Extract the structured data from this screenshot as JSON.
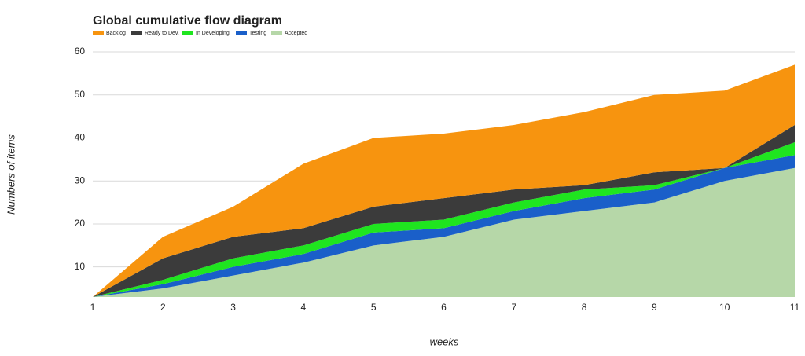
{
  "chart_data": {
    "type": "stacked_area",
    "title": "Global cumulative flow diagram",
    "x_label": "weeks",
    "y_label": "Numbers of items",
    "x": [
      1,
      2,
      3,
      4,
      5,
      6,
      7,
      8,
      9,
      10,
      11
    ],
    "series": [
      {
        "name": "Backlog",
        "color": "#f7940f",
        "values": [
          0,
          5,
          7,
          15,
          16,
          15,
          15,
          17,
          18,
          18,
          14
        ]
      },
      {
        "name": "Ready to Dev.",
        "color": "#3b3b3b",
        "values": [
          0,
          5,
          5,
          4,
          4,
          5,
          3,
          1,
          3,
          0,
          4
        ]
      },
      {
        "name": "In Developing",
        "color": "#1fe51f",
        "values": [
          0,
          1,
          2,
          2,
          2,
          2,
          2,
          2,
          1,
          0,
          3
        ]
      },
      {
        "name": "Testing",
        "color": "#1a5fc9",
        "values": [
          0,
          1,
          2,
          2,
          3,
          2,
          2,
          3,
          3,
          3,
          3
        ]
      },
      {
        "name": "Accepted",
        "color": "#b6d7a8",
        "values": [
          3,
          5,
          8,
          11,
          15,
          17,
          21,
          23,
          25,
          30,
          33
        ]
      }
    ],
    "xlim": [
      1,
      11
    ],
    "xticks": [
      1,
      2,
      3,
      4,
      5,
      6,
      7,
      8,
      9,
      10,
      11
    ],
    "ylim": [
      3,
      60
    ],
    "yticks": [
      10,
      20,
      30,
      40,
      50,
      60
    ],
    "grid": true
  }
}
